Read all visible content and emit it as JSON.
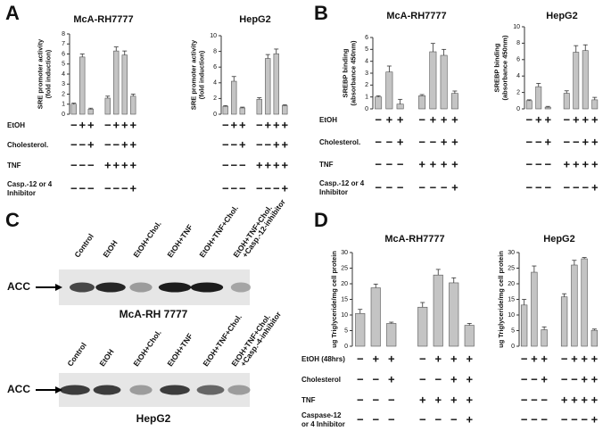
{
  "panel_labels": [
    "A",
    "B",
    "C",
    "D"
  ],
  "treatments": {
    "A": [
      [
        "EtOH"
      ],
      [
        "Cholesterol."
      ],
      [
        "TNF"
      ],
      [
        "Casp.-12 or 4",
        "Inhibitor"
      ]
    ],
    "B": [
      [
        "EtOH"
      ],
      [
        "Cholesterol."
      ],
      [
        "TNF"
      ],
      [
        "Casp.-12 or 4",
        "Inhibitor"
      ]
    ],
    "D": [
      [
        "EtOH (48hrs)"
      ],
      [
        "Cholesterol"
      ],
      [
        "TNF"
      ],
      [
        "Caspase-12",
        "or 4 Inhibitor"
      ]
    ]
  },
  "chart_data": [
    {
      "type": "bar",
      "title": "McA-RH7777",
      "ylabel": [
        "SRE promoter activity",
        "(fold induction)"
      ],
      "categories": [
        null,
        null,
        null,
        null,
        null,
        null,
        null
      ],
      "values": [
        1,
        5.7,
        0.5,
        1.6,
        6.3,
        5.9,
        1.8
      ],
      "errors": [
        0.1,
        0.3,
        0.1,
        0.2,
        0.4,
        0.4,
        0.2
      ],
      "ylim": [
        0,
        8
      ],
      "yticks": [
        0,
        1,
        2,
        3,
        4,
        5,
        6,
        7,
        8
      ],
      "color": "#c4c4c4",
      "conditions": [
        [
          "−",
          "+",
          "+",
          "−",
          "+",
          "+",
          "+"
        ],
        [
          "−",
          "−",
          "+",
          "−",
          "−",
          "+",
          "+"
        ],
        [
          "−",
          "−",
          "−",
          "+",
          "+",
          "+",
          "+"
        ],
        [
          "−",
          "−",
          "−",
          "−",
          "−",
          "−",
          "+"
        ]
      ]
    },
    {
      "type": "bar",
      "title": "HepG2",
      "ylabel": [
        "SRE promoter activity",
        "(fold induction)"
      ],
      "categories": [
        null,
        null,
        null,
        null,
        null,
        null,
        null
      ],
      "values": [
        1,
        4.2,
        0.8,
        1.9,
        7.1,
        7.7,
        1.1
      ],
      "errors": [
        0.1,
        0.6,
        0.1,
        0.2,
        0.5,
        0.6,
        0.1
      ],
      "ylim": [
        0,
        10
      ],
      "yticks": [
        0,
        2,
        4,
        6,
        8,
        10
      ],
      "color": "#c4c4c4",
      "conditions": [
        [
          "−",
          "+",
          "+",
          "−",
          "+",
          "+",
          "+"
        ],
        [
          "−",
          "−",
          "+",
          "−",
          "−",
          "+",
          "+"
        ],
        [
          "−",
          "−",
          "−",
          "+",
          "+",
          "+",
          "+"
        ],
        [
          "−",
          "−",
          "−",
          "−",
          "−",
          "−",
          "+"
        ]
      ]
    },
    {
      "type": "bar",
      "title": "McA-RH7777",
      "ylabel": [
        "SREBP binding",
        "(absorbance 450nm)"
      ],
      "categories": [
        null,
        null,
        null,
        null,
        null,
        null,
        null
      ],
      "values": [
        1,
        3.1,
        0.4,
        1.1,
        4.8,
        4.5,
        1.3
      ],
      "errors": [
        0.1,
        0.5,
        0.4,
        0.1,
        0.7,
        0.5,
        0.2
      ],
      "ylim": [
        0,
        6
      ],
      "yticks": [
        0,
        1,
        2,
        3,
        4,
        5,
        6
      ],
      "color": "#c4c4c4",
      "conditions": [
        [
          "−",
          "+",
          "+",
          "−",
          "+",
          "+",
          "+"
        ],
        [
          "−",
          "−",
          "+",
          "−",
          "−",
          "+",
          "+"
        ],
        [
          "−",
          "−",
          "−",
          "+",
          "+",
          "+",
          "+"
        ],
        [
          "−",
          "−",
          "−",
          "−",
          "−",
          "−",
          "+"
        ]
      ]
    },
    {
      "type": "bar",
      "title": "HepG2",
      "ylabel": [
        "SREBP binding",
        "(absorbance 450nm)"
      ],
      "categories": [
        null,
        null,
        null,
        null,
        null,
        null,
        null
      ],
      "values": [
        1,
        2.7,
        0.2,
        1.9,
        6.9,
        7.1,
        1.1
      ],
      "errors": [
        0.1,
        0.4,
        0.1,
        0.3,
        0.8,
        0.7,
        0.3
      ],
      "ylim": [
        0,
        10
      ],
      "yticks": [
        0,
        2,
        4,
        6,
        8,
        10
      ],
      "color": "#c4c4c4",
      "conditions": [
        [
          "−",
          "+",
          "+",
          "−",
          "+",
          "+",
          "+"
        ],
        [
          "−",
          "−",
          "+",
          "−",
          "−",
          "+",
          "+"
        ],
        [
          "−",
          "−",
          "−",
          "+",
          "+",
          "+",
          "+"
        ],
        [
          "−",
          "−",
          "−",
          "−",
          "−",
          "−",
          "+"
        ]
      ]
    },
    {
      "type": "bar",
      "title": "McA-RH7777",
      "ylabel": [
        "ug Triglyceride/mg cell protein"
      ],
      "categories": [
        null,
        null,
        null,
        null,
        null,
        null,
        null
      ],
      "values": [
        10.5,
        18.7,
        7.3,
        12.5,
        22.8,
        20.3,
        6.7
      ],
      "errors": [
        1.3,
        1.2,
        0.4,
        1.5,
        1.8,
        1.6,
        0.6
      ],
      "ylim": [
        0,
        30
      ],
      "yticks": [
        0,
        5,
        10,
        15,
        20,
        25,
        30
      ],
      "color": "#c4c4c4",
      "conditions": [
        [
          "−",
          "+",
          "+",
          "−",
          "+",
          "+",
          "+"
        ],
        [
          "−",
          "−",
          "+",
          "−",
          "−",
          "+",
          "+"
        ],
        [
          "−",
          "−",
          "−",
          "+",
          "+",
          "+",
          "+"
        ],
        [
          "−",
          "−",
          "−",
          "−",
          "−",
          "−",
          "+"
        ]
      ]
    },
    {
      "type": "bar",
      "title": "HepG2",
      "ylabel": [
        "ug Triglyceride/mg cell protein"
      ],
      "categories": [
        null,
        null,
        null,
        null,
        null,
        null,
        null
      ],
      "values": [
        13.2,
        23.7,
        5.3,
        15.8,
        26,
        28,
        5.1
      ],
      "errors": [
        1.8,
        2.0,
        0.9,
        1.0,
        1.5,
        0.4,
        0.4
      ],
      "ylim": [
        0,
        30
      ],
      "yticks": [
        0,
        5,
        10,
        15,
        20,
        25,
        30
      ],
      "color": "#c4c4c4",
      "conditions": [
        [
          "−",
          "+",
          "+",
          "−",
          "+",
          "+",
          "+"
        ],
        [
          "−",
          "−",
          "+",
          "−",
          "−",
          "+",
          "+"
        ],
        [
          "−",
          "−",
          "−",
          "+",
          "+",
          "+",
          "+"
        ],
        [
          "−",
          "−",
          "−",
          "−",
          "−",
          "−",
          "+"
        ]
      ]
    }
  ],
  "blots": [
    {
      "lanes": [
        [
          "Control"
        ],
        [
          "EtOH"
        ],
        [
          "EtOH+Chol."
        ],
        [
          "EtOH+TNF"
        ],
        [
          "EtOH+TNF+Chol."
        ],
        [
          "EtOH+TNF+Chol.",
          "+Casp.-12-inhibitor"
        ]
      ],
      "band_label": "ACC",
      "caption": "McA-RH 7777"
    },
    {
      "lanes": [
        [
          "Control"
        ],
        [
          "EtOH"
        ],
        [
          "EtOH+Chol."
        ],
        [
          "EtOH+TNF"
        ],
        [
          "EtOH+TNF+Chol."
        ],
        [
          "EtOH+TNF+Chol.",
          "+Casp.-4-inhibitor"
        ]
      ],
      "band_label": "ACC",
      "caption": "HepG2"
    }
  ]
}
